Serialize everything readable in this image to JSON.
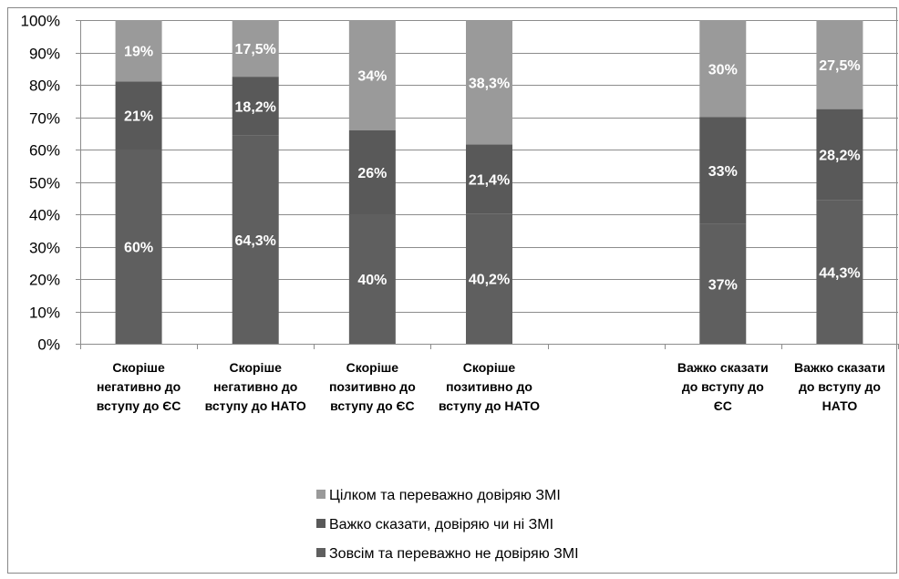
{
  "chart_data": {
    "type": "bar",
    "stacked": true,
    "percent_stacked": true,
    "categories": [
      [
        "Скоріше",
        "негативно до",
        "вступу до ЄС"
      ],
      [
        "Скоріше",
        "негативно до",
        "вступу до НАТО"
      ],
      [
        "Скоріше",
        "позитивно до",
        "вступу до ЄС"
      ],
      [
        "Скоріше",
        "позитивно  до",
        "вступу до НАТО"
      ],
      [
        "",
        "",
        ""
      ],
      [
        "Важко сказати",
        "до вступу до",
        "ЄС"
      ],
      [
        "Важко сказати",
        "до вступу до",
        "НАТО"
      ]
    ],
    "series": [
      {
        "name": "Зовсім  та переважно не довіряю ЗМІ",
        "color": "#5f5f5f",
        "values": [
          60,
          64.3,
          40,
          40.2,
          null,
          37,
          44.3
        ],
        "labels": [
          "60%",
          "64,3%",
          "40%",
          "40,2%",
          "",
          "37%",
          "44,3%"
        ]
      },
      {
        "name": "Важко сказати, довіряю чи ні ЗМІ",
        "color": "#595959",
        "values": [
          21,
          18.2,
          26,
          21.4,
          null,
          33,
          28.2
        ],
        "labels": [
          "21%",
          "18,2%",
          "26%",
          "21,4%",
          "",
          "33%",
          "28,2%"
        ]
      },
      {
        "name": "Цілком та переважно довіряю ЗМІ",
        "color": "#9a9a9a",
        "values": [
          19,
          17.5,
          34,
          38.3,
          null,
          30,
          27.5
        ],
        "labels": [
          "19%",
          "17,5%",
          "34%",
          "38,3%",
          "",
          "30%",
          "27,5%"
        ]
      }
    ],
    "ylim": [
      0,
      100
    ],
    "yticks": [
      "0%",
      "10%",
      "20%",
      "30%",
      "40%",
      "50%",
      "60%",
      "70%",
      "80%",
      "90%",
      "100%"
    ],
    "grid": true,
    "legend_placement": "bottom",
    "legend_order": [
      "Цілком та переважно довіряю ЗМІ",
      "Важко сказати, довіряю чи ні ЗМІ",
      "Зовсім  та переважно не довіряю ЗМІ"
    ],
    "xlabel": "",
    "ylabel": "",
    "title": ""
  }
}
